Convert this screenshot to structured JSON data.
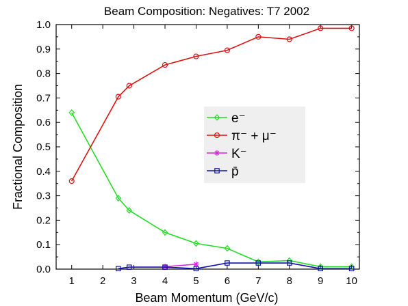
{
  "chart_data": {
    "type": "line",
    "title": "Beam Composition: Negatives: T7 2002",
    "xlabel": "Beam Momentum (GeV/c)",
    "ylabel": "Fractional Composition",
    "xlim": [
      0.5,
      10.25
    ],
    "ylim": [
      0,
      1.0
    ],
    "x_ticks": [
      1,
      2,
      3,
      4,
      5,
      6,
      7,
      8,
      9,
      10
    ],
    "x_tick_labels": [
      "1",
      "2",
      "3",
      "4",
      "5",
      "6",
      "7",
      "8",
      "9",
      "10"
    ],
    "y_ticks": [
      0,
      0.1,
      0.2,
      0.3,
      0.4,
      0.5,
      0.6,
      0.7,
      0.8,
      0.9,
      1.0
    ],
    "y_tick_labels": [
      "0.0",
      "0.1",
      "0.2",
      "0.3",
      "0.4",
      "0.5",
      "0.6",
      "0.7",
      "0.8",
      "0.9",
      "1.0"
    ],
    "grid": false,
    "legend_position": "center-right",
    "series": [
      {
        "name": "e⁻",
        "color": "#22dd22",
        "marker": "diamond",
        "x": [
          1,
          2.5,
          2.85,
          4,
          5,
          6,
          7,
          8,
          9,
          10
        ],
        "y": [
          0.64,
          0.29,
          0.24,
          0.15,
          0.105,
          0.085,
          0.03,
          0.035,
          0.01,
          0.01
        ]
      },
      {
        "name": "π⁻ + μ⁻",
        "color": "#dd1111",
        "marker": "circle",
        "x": [
          1,
          2.5,
          2.85,
          4,
          5,
          6,
          7,
          8,
          9,
          10
        ],
        "y": [
          0.36,
          0.705,
          0.75,
          0.835,
          0.87,
          0.895,
          0.95,
          0.94,
          0.985,
          0.985
        ]
      },
      {
        "name": "K⁻",
        "color": "#dd22dd",
        "marker": "star",
        "x": [
          4,
          5
        ],
        "y": [
          0.01,
          0.02
        ]
      },
      {
        "name": "p̄",
        "color": "#1111aa",
        "marker": "square",
        "x": [
          2.5,
          2.85,
          4,
          5,
          6,
          7,
          8,
          9,
          10
        ],
        "y": [
          0.002,
          0.008,
          0.008,
          0.002,
          0.025,
          0.025,
          0.025,
          0.002,
          0.002
        ]
      }
    ]
  }
}
